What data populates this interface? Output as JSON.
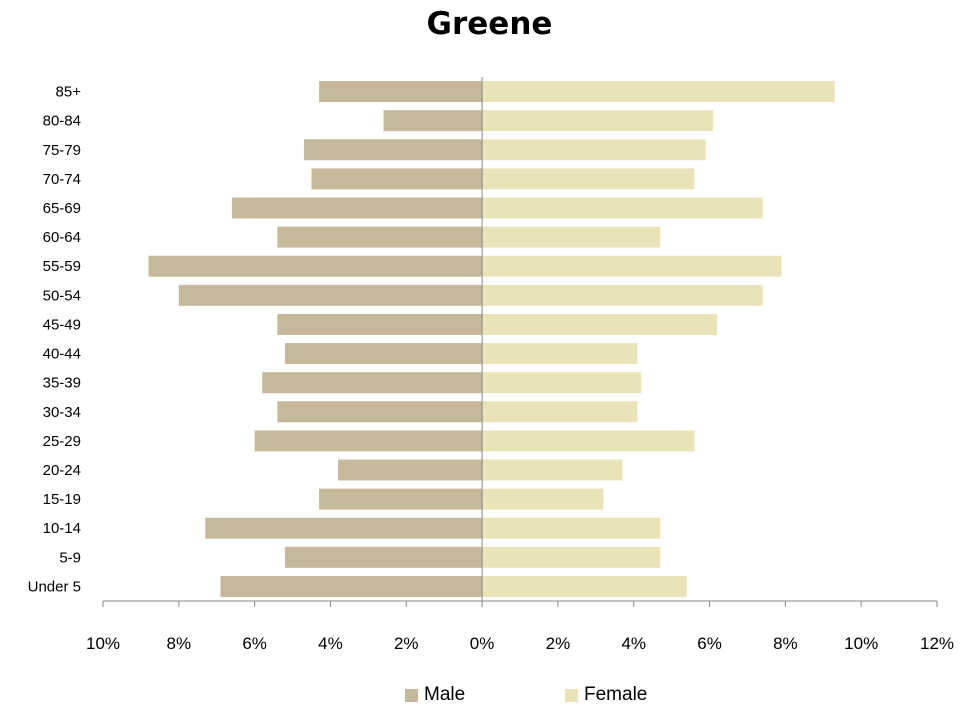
{
  "chart_data": {
    "type": "bar",
    "orientation": "horizontal",
    "title": "Greene",
    "categories": [
      "Under 5",
      "5-9",
      "10-14",
      "15-19",
      "20-24",
      "25-29",
      "30-34",
      "35-39",
      "40-44",
      "45-49",
      "50-54",
      "55-59",
      "60-64",
      "65-69",
      "70-74",
      "75-79",
      "80-84",
      "85+"
    ],
    "series": [
      {
        "name": "Male",
        "color": "#c6b999",
        "values": [
          6.9,
          5.2,
          7.3,
          4.3,
          3.8,
          6.0,
          5.4,
          5.8,
          5.2,
          5.4,
          8.0,
          8.8,
          5.4,
          6.6,
          4.5,
          4.7,
          2.6,
          4.3
        ]
      },
      {
        "name": "Female",
        "color": "#ebe3b8",
        "values": [
          5.4,
          4.7,
          4.7,
          3.2,
          3.7,
          5.6,
          4.1,
          4.2,
          4.1,
          6.2,
          7.4,
          7.9,
          4.7,
          7.4,
          5.6,
          5.9,
          6.1,
          9.3
        ]
      }
    ],
    "xlim": [
      -10,
      12
    ],
    "xticks": [
      -10,
      -8,
      -6,
      -4,
      -2,
      0,
      2,
      4,
      6,
      8,
      10,
      12
    ],
    "xtick_labels": [
      "10%",
      "8%",
      "6%",
      "4%",
      "2%",
      "0%",
      "2%",
      "4%",
      "6%",
      "8%",
      "10%",
      "12%"
    ],
    "grid": false,
    "legend_position": "bottom"
  }
}
